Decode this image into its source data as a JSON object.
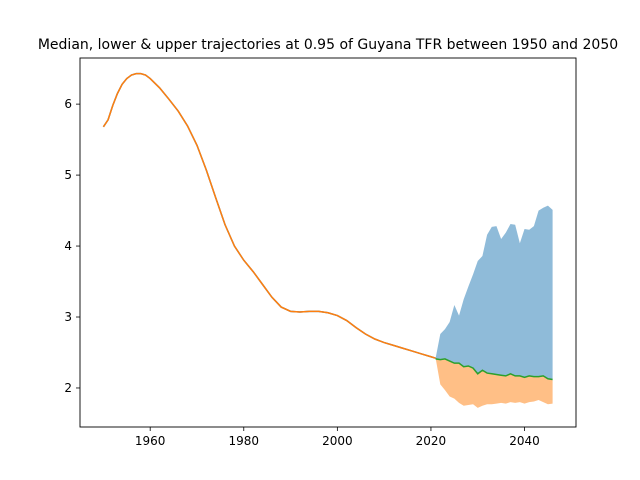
{
  "chart_data": {
    "type": "area",
    "title": "Median, lower & upper trajectories at 0.95 of Guyana TFR between 1950 and 2050",
    "xlabel": "",
    "ylabel": "",
    "xlim": [
      1945,
      2051
    ],
    "ylim": [
      1.45,
      6.65
    ],
    "x_ticks": [
      1960,
      1980,
      2000,
      2020,
      2040
    ],
    "y_ticks": [
      2,
      3,
      4,
      5,
      6
    ],
    "grid": false,
    "legend": "none",
    "colors": {
      "upper_fill": "#8fbbd9",
      "lower_fill": "#ffbf86",
      "history_line": "#1f77b4",
      "history_overlay": "#ff7f0e",
      "median_line": "#2ca02c"
    },
    "historical": {
      "x": [
        1950,
        1951,
        1952,
        1953,
        1954,
        1955,
        1956,
        1957,
        1958,
        1959,
        1960,
        1962,
        1964,
        1966,
        1968,
        1970,
        1972,
        1974,
        1976,
        1978,
        1980,
        1982,
        1984,
        1986,
        1988,
        1990,
        1992,
        1994,
        1996,
        1998,
        2000,
        2002,
        2004,
        2006,
        2008,
        2010,
        2012,
        2014,
        2016,
        2018,
        2020,
        2021
      ],
      "y": [
        5.68,
        5.78,
        5.98,
        6.15,
        6.28,
        6.36,
        6.41,
        6.43,
        6.43,
        6.41,
        6.36,
        6.23,
        6.07,
        5.9,
        5.69,
        5.42,
        5.07,
        4.68,
        4.3,
        4.0,
        3.8,
        3.64,
        3.46,
        3.28,
        3.14,
        3.08,
        3.07,
        3.08,
        3.08,
        3.06,
        3.02,
        2.95,
        2.85,
        2.76,
        2.69,
        2.64,
        2.6,
        2.56,
        2.52,
        2.48,
        2.44,
        2.42
      ]
    },
    "projection": {
      "x": [
        2021,
        2022,
        2023,
        2024,
        2025,
        2026,
        2027,
        2028,
        2029,
        2030,
        2031,
        2032,
        2033,
        2034,
        2035,
        2036,
        2037,
        2038,
        2039,
        2040,
        2041,
        2042,
        2043,
        2044,
        2045,
        2046
      ],
      "median": [
        2.41,
        2.4,
        2.41,
        2.38,
        2.35,
        2.35,
        2.3,
        2.31,
        2.28,
        2.2,
        2.25,
        2.21,
        2.2,
        2.19,
        2.18,
        2.17,
        2.2,
        2.17,
        2.17,
        2.15,
        2.17,
        2.16,
        2.16,
        2.17,
        2.13,
        2.12
      ],
      "upper": [
        2.42,
        2.76,
        2.83,
        2.93,
        3.17,
        3.02,
        3.25,
        3.43,
        3.6,
        3.79,
        3.86,
        4.16,
        4.27,
        4.28,
        4.1,
        4.19,
        4.31,
        4.3,
        4.04,
        4.24,
        4.23,
        4.28,
        4.5,
        4.54,
        4.57,
        4.51
      ],
      "lower": [
        2.42,
        2.05,
        1.97,
        1.88,
        1.85,
        1.79,
        1.75,
        1.76,
        1.77,
        1.72,
        1.75,
        1.77,
        1.77,
        1.78,
        1.79,
        1.78,
        1.8,
        1.79,
        1.8,
        1.78,
        1.8,
        1.81,
        1.83,
        1.8,
        1.77,
        1.78
      ]
    }
  }
}
